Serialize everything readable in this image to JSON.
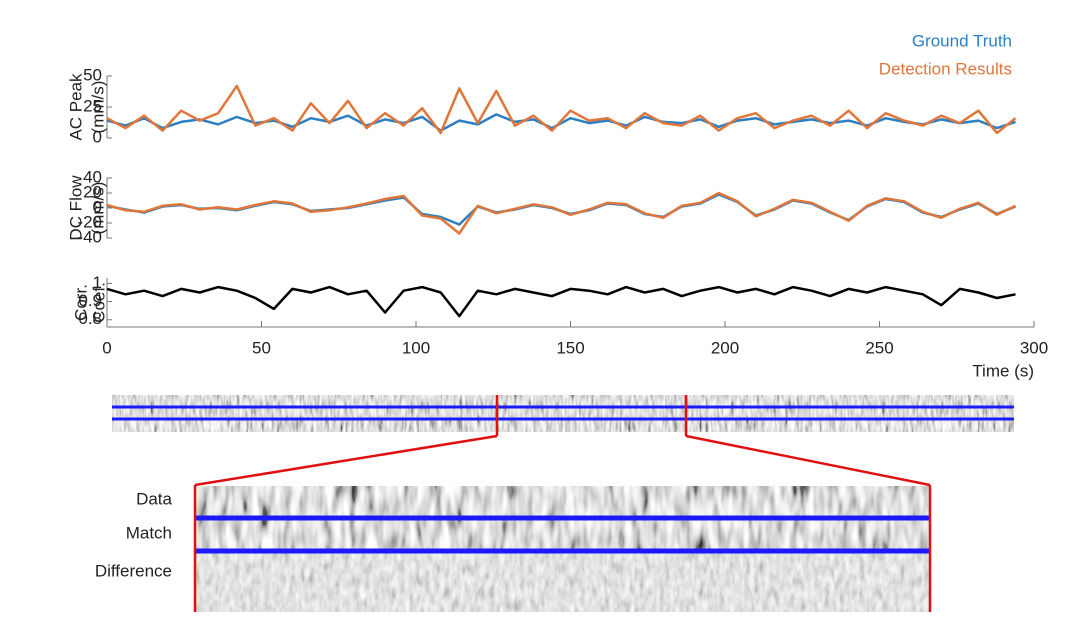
{
  "chart_data": [
    {
      "type": "line",
      "ylabel": [
        "AC Peak",
        "(mm/s)"
      ],
      "legend": "upper right",
      "xlim": [
        0,
        300
      ],
      "ylim": [
        0,
        50
      ],
      "yticks": [
        0,
        25,
        50
      ],
      "x": [
        0,
        6,
        12,
        18,
        24,
        30,
        36,
        42,
        48,
        54,
        60,
        66,
        72,
        78,
        84,
        90,
        96,
        102,
        108,
        114,
        120,
        126,
        132,
        138,
        144,
        150,
        156,
        162,
        168,
        174,
        180,
        186,
        192,
        198,
        204,
        210,
        216,
        222,
        228,
        234,
        240,
        246,
        252,
        258,
        264,
        270,
        276,
        282,
        288,
        294
      ],
      "series": [
        {
          "name": "Ground Truth",
          "color": "#2b7fc2",
          "values": [
            14,
            10,
            16,
            8,
            13,
            15,
            11,
            17,
            12,
            14,
            9,
            16,
            13,
            18,
            10,
            15,
            12,
            17,
            6,
            14,
            11,
            19,
            13,
            15,
            8,
            16,
            12,
            14,
            10,
            17,
            13,
            12,
            15,
            9,
            14,
            16,
            11,
            13,
            15,
            12,
            14,
            10,
            16,
            13,
            11,
            15,
            12,
            14,
            8,
            13
          ]
        },
        {
          "name": "Detection Results",
          "color": "#e0763a",
          "values": [
            16,
            8,
            18,
            6,
            22,
            14,
            20,
            42,
            10,
            16,
            6,
            28,
            12,
            30,
            8,
            20,
            10,
            24,
            4,
            40,
            12,
            38,
            10,
            18,
            6,
            22,
            14,
            16,
            8,
            20,
            12,
            10,
            18,
            6,
            16,
            20,
            8,
            14,
            18,
            10,
            22,
            8,
            20,
            14,
            10,
            18,
            12,
            22,
            4,
            16
          ]
        }
      ]
    },
    {
      "type": "line",
      "ylabel": [
        "DC Flow",
        "(mm/s)"
      ],
      "xlim": [
        0,
        300
      ],
      "ylim": [
        -40,
        40
      ],
      "yticks": [
        -40,
        -20,
        0,
        20,
        40
      ],
      "x": [
        0,
        6,
        12,
        18,
        24,
        30,
        36,
        42,
        48,
        54,
        60,
        66,
        72,
        78,
        84,
        90,
        96,
        102,
        108,
        114,
        120,
        126,
        132,
        138,
        144,
        150,
        156,
        162,
        168,
        174,
        180,
        186,
        192,
        198,
        204,
        210,
        216,
        222,
        228,
        234,
        240,
        246,
        252,
        258,
        264,
        270,
        276,
        282,
        288,
        294
      ],
      "series": [
        {
          "color": "#2b7fc2",
          "values": [
            3,
            -2,
            -6,
            2,
            4,
            -1,
            0,
            -3,
            3,
            8,
            5,
            -4,
            -2,
            0,
            5,
            10,
            14,
            -8,
            -12,
            -22,
            2,
            -6,
            -2,
            4,
            0,
            -8,
            -3,
            6,
            4,
            -8,
            -12,
            2,
            6,
            18,
            8,
            -10,
            -2,
            10,
            6,
            -6,
            -16,
            2,
            12,
            8,
            -6,
            -12,
            -2,
            6,
            -8,
            2
          ]
        },
        {
          "color": "#e0763a",
          "values": [
            4,
            -3,
            -5,
            3,
            5,
            -2,
            1,
            -2,
            4,
            9,
            6,
            -5,
            -3,
            1,
            6,
            12,
            16,
            -10,
            -14,
            -34,
            3,
            -7,
            -1,
            5,
            1,
            -9,
            -2,
            7,
            5,
            -7,
            -13,
            3,
            7,
            20,
            9,
            -11,
            -1,
            11,
            7,
            -5,
            -17,
            3,
            13,
            9,
            -5,
            -13,
            -1,
            7,
            -9,
            3
          ]
        }
      ]
    },
    {
      "type": "line",
      "ylabel": [
        "Corr.",
        "Coef."
      ],
      "xlabel": "Time (s)",
      "xlim": [
        0,
        300
      ],
      "xticks": [
        0,
        50,
        100,
        150,
        200,
        250,
        300
      ],
      "ylim": [
        0.76,
        1.03
      ],
      "yticks": [
        0.8,
        0.9,
        1
      ],
      "x": [
        0,
        6,
        12,
        18,
        24,
        30,
        36,
        42,
        48,
        54,
        60,
        66,
        72,
        78,
        84,
        90,
        96,
        102,
        108,
        114,
        120,
        126,
        132,
        138,
        144,
        150,
        156,
        162,
        168,
        174,
        180,
        186,
        192,
        198,
        204,
        210,
        216,
        222,
        228,
        234,
        240,
        246,
        252,
        258,
        264,
        270,
        276,
        282,
        288,
        294
      ],
      "series": [
        {
          "color": "#000000",
          "values": [
            0.97,
            0.94,
            0.96,
            0.93,
            0.97,
            0.95,
            0.98,
            0.96,
            0.92,
            0.86,
            0.97,
            0.95,
            0.98,
            0.94,
            0.96,
            0.84,
            0.96,
            0.98,
            0.95,
            0.82,
            0.96,
            0.94,
            0.97,
            0.95,
            0.93,
            0.97,
            0.96,
            0.94,
            0.98,
            0.95,
            0.97,
            0.93,
            0.96,
            0.98,
            0.95,
            0.97,
            0.94,
            0.98,
            0.96,
            0.93,
            0.97,
            0.95,
            0.98,
            0.96,
            0.94,
            0.88,
            0.97,
            0.95,
            0.92,
            0.94
          ]
        }
      ]
    }
  ],
  "image_strip": {
    "row_labels": [
      "Data",
      "Match",
      "Difference"
    ]
  }
}
